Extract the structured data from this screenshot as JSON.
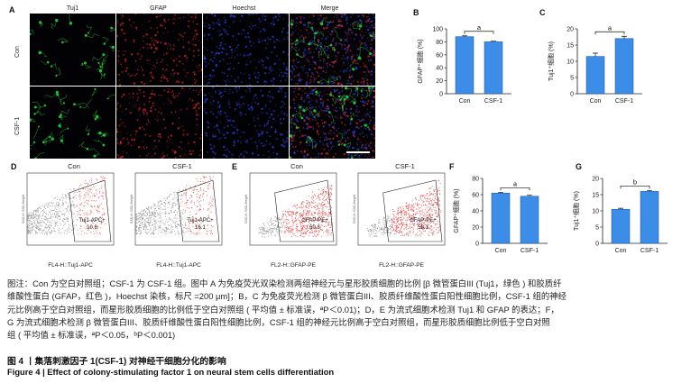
{
  "panels": {
    "A": {
      "label": "A",
      "columns": [
        "Tuj1",
        "GFAP",
        "Hoechst",
        "Merge"
      ],
      "rows": [
        "Con",
        "CSF-1"
      ],
      "colors": {
        "Tuj1": "#1fd13a",
        "GFAP": "#d9262b",
        "Hoechst": "#2a3fd9"
      }
    },
    "D": {
      "label": "D",
      "plots": [
        {
          "title": "Con",
          "gate_label": "Tuj1-APC+",
          "gate_value": "10.6",
          "xlabel": "FL4-H::Tuj1-APC",
          "ylabel": "SSC-H::SSC-Height"
        },
        {
          "title": "CSF-1",
          "gate_label": "Tuj1-APC+",
          "gate_value": "16.1",
          "xlabel": "FL4-H::Tuj1-APC",
          "ylabel": "SSC-H::SSC-Height"
        }
      ]
    },
    "E": {
      "label": "E",
      "plots": [
        {
          "title": "Con",
          "gate_label": "GFAP-PE+",
          "gate_value": "60.8",
          "xlabel": "FL2-H::GFAP-PE",
          "ylabel": "SSC-H::SSC-Height"
        },
        {
          "title": "CSF-1",
          "gate_label": "GFAP-PE+",
          "gate_value": "58.1",
          "xlabel": "FL2-H::GFAP-PE",
          "ylabel": "SSC-H::SSC-Height"
        }
      ]
    }
  },
  "chart_data": [
    {
      "panel": "B",
      "type": "bar",
      "categories": [
        "Con",
        "CSF-1"
      ],
      "values": [
        88,
        80
      ],
      "errors": [
        1.2,
        1.0
      ],
      "ylabel": "GFAP⁺细胞 (%)",
      "ylim": [
        0,
        100
      ],
      "yticks": [
        0,
        20,
        40,
        60,
        80,
        100
      ],
      "sig": "a",
      "bar_color": "#3b8de8"
    },
    {
      "panel": "C",
      "type": "bar",
      "categories": [
        "Con",
        "CSF-1"
      ],
      "values": [
        11.5,
        17
      ],
      "errors": [
        1.0,
        0.7
      ],
      "ylabel": "Tuj1⁺细胞 (%)",
      "ylim": [
        0,
        20
      ],
      "yticks": [
        0,
        5,
        10,
        15,
        20
      ],
      "sig": "a",
      "bar_color": "#3b8de8"
    },
    {
      "panel": "F",
      "type": "bar",
      "categories": [
        "Con",
        "CSF-1"
      ],
      "values": [
        62,
        58
      ],
      "errors": [
        1.0,
        1.4
      ],
      "ylabel": "GFAP⁺细胞 (%)",
      "ylim": [
        0,
        80
      ],
      "yticks": [
        0,
        20,
        40,
        60,
        80
      ],
      "sig": "a",
      "bar_color": "#3b8de8"
    },
    {
      "panel": "G",
      "type": "bar",
      "categories": [
        "Con",
        "CSF-1"
      ],
      "values": [
        10.5,
        16
      ],
      "errors": [
        0.3,
        0.3
      ],
      "ylabel": "Tuj1⁺细胞 (%)",
      "ylim": [
        0,
        20
      ],
      "yticks": [
        0,
        5,
        10,
        15,
        20
      ],
      "sig": "b",
      "bar_color": "#3b8de8"
    }
  ],
  "caption": {
    "lines": [
      "图注：Con 为空白对照组；CSF-1 为 CSF-1 组。图中 A 为免疫荧光双染检测两组神经元与星形胶质细胞的比例 [β 微管蛋白III (Tuj1，绿色 ) 和胶质纤",
      "维酸性蛋白 (GFAP，红色 )，Hoechst 染核，标尺 =200 μm]；B，C 为免疫荧光检测 β 微管蛋白III、胶质纤维酸性蛋白阳性细胞比例，CSF-1 组的神经",
      "元比例高于空白对照组，而星形胶质细胞的比例低于空白对照组 ( 平均值 ± 标准误，ªP＜0.01)；D，E 为流式细胞术检测 Tuj1 和 GFAP 的表达；F，",
      "G 为流式细胞术检测 β 微管蛋白III、胶质纤维酸性蛋白阳性细胞比例，CSF-1 组的神经元比例高于空白对照组，而星形胶质细胞比例低于空白对照",
      "组 ( 平均值 ± 标准误，ªP＜0.05，ᵇP＜0.001)"
    ],
    "title_cn": "图 4 丨集落刺激因子 1(CSF-1) 对神经干细胞分化的影响",
    "title_en": "Figure 4   |   Effect of colony-stimulating factor 1 on neural stem cells differentiation"
  }
}
